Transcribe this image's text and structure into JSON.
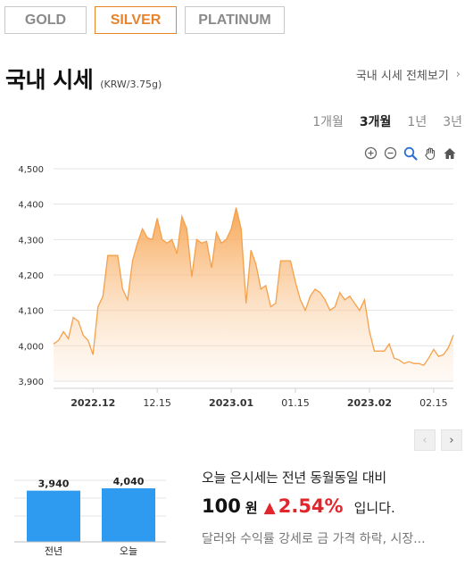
{
  "tabs": [
    {
      "label": "GOLD",
      "active": false
    },
    {
      "label": "SILVER",
      "active": true
    },
    {
      "label": "PLATINUM",
      "active": false
    }
  ],
  "header": {
    "title": "국내 시세",
    "unit": "(KRW/3.75g)",
    "view_all": "국내 시세 전체보기"
  },
  "periods": [
    {
      "label": "1개월",
      "active": false
    },
    {
      "label": "3개월",
      "active": true
    },
    {
      "label": "1년",
      "active": false
    },
    {
      "label": "3년",
      "active": false
    }
  ],
  "toolbar": [
    "zoom-in-icon",
    "zoom-out-icon",
    "magnifier-icon",
    "pan-hand-icon",
    "home-icon"
  ],
  "colors": {
    "accent": "#e8832a",
    "line": "#f5a04a",
    "up": "#e0262c",
    "bar": "#2f9bf0"
  },
  "chart_data": {
    "type": "area",
    "y_ticks": [
      "4,500",
      "4,400",
      "4,300",
      "4,200",
      "4,100",
      "4,000",
      "3,900"
    ],
    "ylim": [
      3900,
      4500
    ],
    "x_tick_labels": [
      {
        "label": "2022.12",
        "index": 8,
        "bold": true
      },
      {
        "label": "12.15",
        "index": 21,
        "bold": false
      },
      {
        "label": "2023.01",
        "index": 36,
        "bold": true
      },
      {
        "label": "01.15",
        "index": 49,
        "bold": false
      },
      {
        "label": "2023.02",
        "index": 64,
        "bold": true
      },
      {
        "label": "02.15",
        "index": 77,
        "bold": false
      }
    ],
    "values": [
      4005,
      4015,
      4040,
      4020,
      4080,
      4070,
      4030,
      4015,
      3975,
      4110,
      4140,
      4255,
      4255,
      4255,
      4160,
      4130,
      4240,
      4290,
      4330,
      4305,
      4300,
      4360,
      4300,
      4290,
      4300,
      4260,
      4365,
      4330,
      4195,
      4300,
      4290,
      4295,
      4220,
      4320,
      4290,
      4300,
      4330,
      4390,
      4330,
      4120,
      4270,
      4230,
      4160,
      4170,
      4110,
      4120,
      4240,
      4240,
      4240,
      4180,
      4130,
      4100,
      4140,
      4160,
      4150,
      4130,
      4100,
      4110,
      4150,
      4130,
      4140,
      4120,
      4100,
      4130,
      4040,
      3985,
      3985,
      3985,
      4005,
      3965,
      3960,
      3950,
      3955,
      3950,
      3950,
      3945,
      3965,
      3990,
      3970,
      3975,
      3995,
      4030
    ]
  },
  "compare": {
    "bars": [
      {
        "label": "전년",
        "value": 3940,
        "value_text": "3,940"
      },
      {
        "label": "오늘",
        "value": 4040,
        "value_text": "4,040"
      }
    ]
  },
  "summary": {
    "line1": "오늘 은시세는 전년 동월동일 대비",
    "amount": "100",
    "won": "원",
    "arrow": "▲",
    "percent": "2.54%",
    "suffix": "입니다.",
    "news": "달러와 수익률 강세로 금 가격 하락, 시장..."
  },
  "pager": {
    "prev": "‹",
    "next": "›"
  }
}
